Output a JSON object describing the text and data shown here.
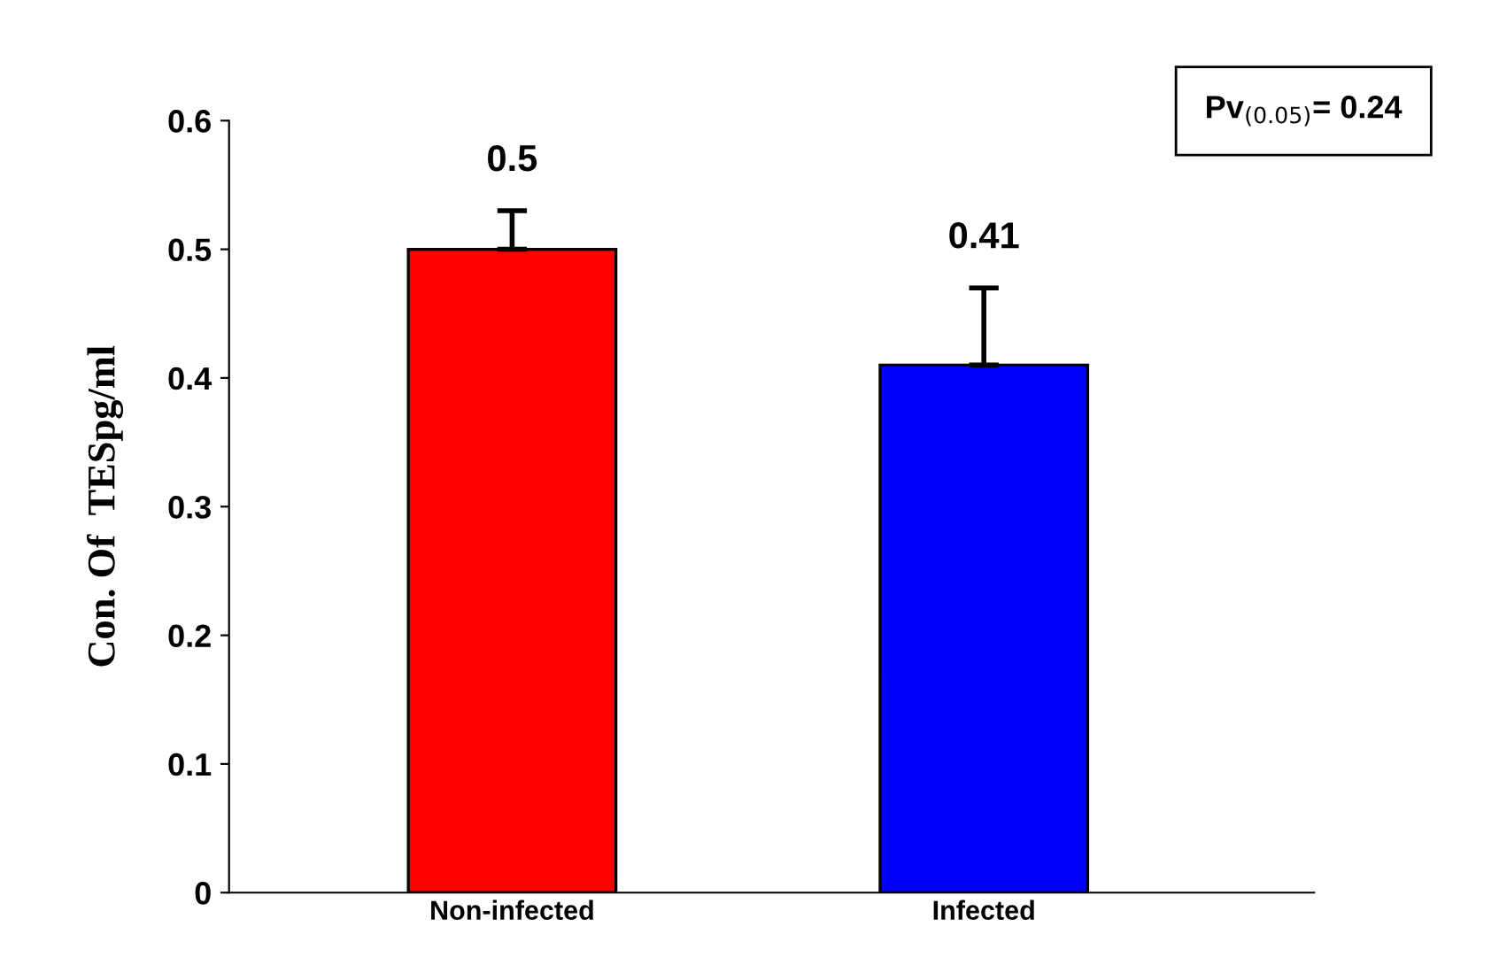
{
  "chart_data": {
    "type": "bar",
    "ylabel": "Con. Of  TESpg/ml",
    "categories": [
      "Non-infected",
      "Infected"
    ],
    "values": [
      0.5,
      0.41
    ],
    "colors": [
      "#ff0000",
      "#0000ff"
    ],
    "errors": [
      0.03,
      0.06
    ],
    "data_labels": true,
    "ylim": [
      0,
      0.6
    ],
    "yticks": [
      0,
      0.1,
      0.2,
      0.3,
      0.4,
      0.5,
      0.6
    ],
    "grid": false,
    "annotations": [
      "Pv$_{(0.05)}$= 0.24"
    ]
  }
}
